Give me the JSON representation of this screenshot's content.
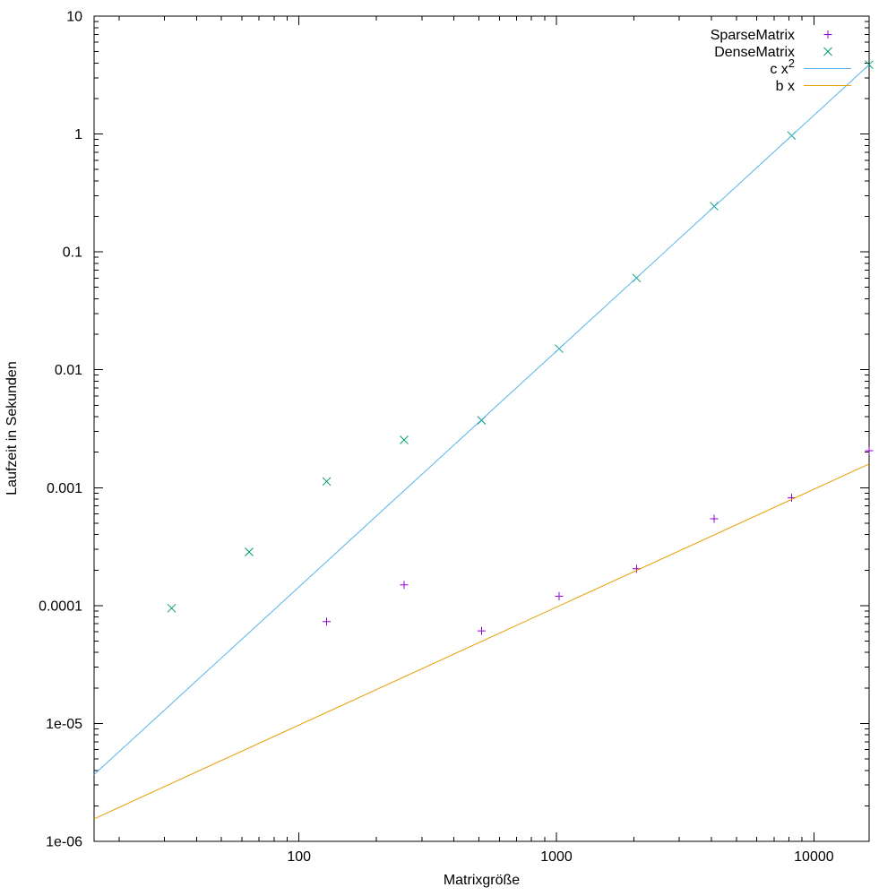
{
  "chart_data": {
    "type": "scatter",
    "title": "",
    "xlabel": "Matrixgröße",
    "ylabel": "Laufzeit in Sekunden",
    "x_scale": "log",
    "y_scale": "log",
    "xlim": [
      16,
      16384
    ],
    "ylim": [
      1e-06,
      10
    ],
    "grid": false,
    "legend_position": "top-right",
    "background_color": "#ffffff",
    "axis_color": "#000000",
    "x_ticks": [
      {
        "value": 100,
        "label": "100"
      },
      {
        "value": 1000,
        "label": "1000"
      },
      {
        "value": 10000,
        "label": "10000"
      }
    ],
    "y_ticks": [
      {
        "value": 10,
        "label": "10"
      },
      {
        "value": 1,
        "label": "1"
      },
      {
        "value": 0.1,
        "label": "0.1"
      },
      {
        "value": 0.01,
        "label": "0.01"
      },
      {
        "value": 0.001,
        "label": "0.001"
      },
      {
        "value": 0.0001,
        "label": "0.0001"
      },
      {
        "value": 1e-05,
        "label": "1e-05"
      },
      {
        "value": 1e-06,
        "label": "1e-06"
      }
    ],
    "series": [
      {
        "name": "SparseMatrix",
        "type": "points",
        "marker": "plus",
        "color": "#9400d3",
        "points": [
          [
            128,
            7.3e-05
          ],
          [
            256,
            0.00015
          ],
          [
            512,
            6.1e-05
          ],
          [
            1024,
            0.00012
          ],
          [
            2048,
            0.000205
          ],
          [
            4096,
            0.000545
          ],
          [
            8192,
            0.00082
          ],
          [
            16384,
            0.00206
          ]
        ]
      },
      {
        "name": "DenseMatrix",
        "type": "points",
        "marker": "cross",
        "color": "#009e73",
        "points": [
          [
            32,
            9.5e-05
          ],
          [
            64,
            0.000285
          ],
          [
            128,
            0.00113
          ],
          [
            256,
            0.00254
          ],
          [
            512,
            0.00373
          ],
          [
            1024,
            0.0151
          ],
          [
            2048,
            0.06
          ],
          [
            4096,
            0.244
          ],
          [
            8192,
            0.97
          ],
          [
            16384,
            3.87
          ]
        ]
      },
      {
        "name": "c x²",
        "type": "line",
        "color": "#56b4e9",
        "function": "c*x^2",
        "coefficient": 1.44e-08,
        "power": 2
      },
      {
        "name": "b x",
        "type": "line",
        "color": "#e69f00",
        "function": "b*x",
        "coefficient": 9.7e-08,
        "power": 1
      }
    ]
  }
}
